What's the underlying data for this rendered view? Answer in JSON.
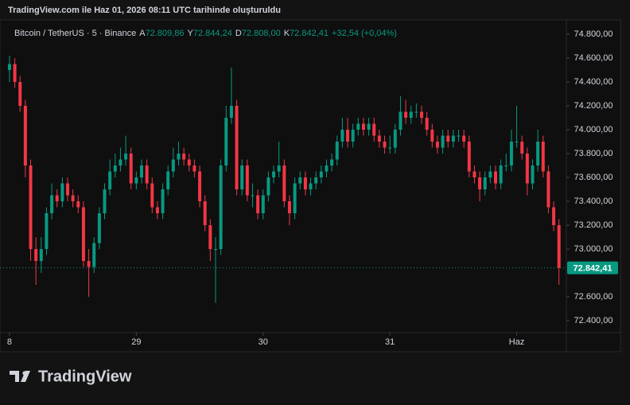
{
  "header": {
    "caption": "TradingView.com ile Haz 01, 2026 08:11 UTC tarihinde oluşturuldu"
  },
  "chart_data": {
    "type": "candlestick",
    "title": "Bitcoin / TetherUS · 5 · Binance",
    "ohlc_legend": [
      {
        "key": "A",
        "value": "72.809,86"
      },
      {
        "key": "Y",
        "value": "72.844,24"
      },
      {
        "key": "D",
        "value": "72.808,00"
      },
      {
        "key": "K",
        "value": "72.842,41"
      }
    ],
    "change": "+32,54 (+0,04%)",
    "up_color": "#089981",
    "down_color": "#f23645",
    "x": [
      0,
      1,
      2,
      3,
      4,
      5,
      6,
      7,
      8,
      9,
      10,
      11,
      12,
      13,
      14,
      15,
      16,
      17,
      18,
      19,
      20,
      21,
      22,
      23,
      24,
      25,
      26,
      27,
      28,
      29,
      30,
      31,
      32,
      33,
      34,
      35,
      36,
      37,
      38,
      39,
      40,
      41,
      42,
      43,
      44,
      45,
      46,
      47,
      48,
      49,
      50,
      51,
      52,
      53,
      54,
      55,
      56,
      57,
      58,
      59,
      60,
      61,
      62,
      63,
      64,
      65,
      66,
      67,
      68,
      69,
      70,
      71,
      72,
      73,
      74,
      75,
      76,
      77,
      78,
      79,
      80,
      81,
      82,
      83,
      84,
      85,
      86,
      87,
      88,
      89,
      90,
      91,
      92,
      93,
      94,
      95,
      96,
      97,
      98,
      99,
      100,
      101,
      102,
      103,
      104
    ],
    "open": [
      74500,
      74550,
      74400,
      74200,
      73700,
      73000,
      72900,
      73000,
      73300,
      73450,
      73400,
      73550,
      73450,
      73400,
      73350,
      72900,
      72850,
      73050,
      73300,
      73500,
      73650,
      73700,
      73750,
      73800,
      73550,
      73600,
      73700,
      73550,
      73350,
      73300,
      73500,
      73650,
      73750,
      73800,
      73750,
      73700,
      73650,
      73400,
      73200,
      73000,
      73000,
      73700,
      74100,
      74200,
      73500,
      73700,
      73450,
      73450,
      73300,
      73450,
      73600,
      73650,
      73700,
      73400,
      73300,
      73550,
      73600,
      73500,
      73550,
      73600,
      73650,
      73700,
      73750,
      73900,
      74000,
      73900,
      74000,
      74050,
      74000,
      74050,
      73950,
      73900,
      73850,
      73850,
      74000,
      74150,
      74100,
      74150,
      74150,
      74100,
      74000,
      73900,
      73850,
      73950,
      73900,
      73950,
      73950,
      73900,
      73650,
      73600,
      73500,
      73600,
      73650,
      73550,
      73700,
      73700,
      73900,
      73900,
      73800,
      73550,
      73700,
      73900,
      73650,
      73350,
      73200
    ],
    "high": [
      74620,
      74600,
      74450,
      74250,
      73750,
      73100,
      73100,
      73350,
      73550,
      73500,
      73600,
      73600,
      73500,
      73450,
      73400,
      73000,
      73100,
      73350,
      73550,
      73750,
      73800,
      73850,
      73950,
      73850,
      73650,
      73750,
      73750,
      73600,
      73400,
      73550,
      73700,
      73850,
      73900,
      73850,
      73800,
      73750,
      73700,
      73450,
      73250,
      73100,
      73750,
      74200,
      74520,
      74250,
      73750,
      73750,
      73550,
      73500,
      73500,
      73650,
      73700,
      73900,
      73750,
      73450,
      73600,
      73650,
      73650,
      73600,
      73650,
      73700,
      73750,
      73800,
      73950,
      74100,
      74100,
      74050,
      74100,
      74100,
      74100,
      74100,
      74000,
      73950,
      73950,
      74050,
      74280,
      74250,
      74200,
      74220,
      74200,
      74150,
      74050,
      73950,
      74000,
      74000,
      74000,
      74000,
      74000,
      73950,
      73700,
      73650,
      73650,
      73700,
      73700,
      73750,
      73800,
      74000,
      74200,
      73950,
      73850,
      73750,
      74000,
      73950,
      73700,
      73400,
      73250
    ],
    "low": [
      74400,
      74350,
      74150,
      73600,
      72900,
      72700,
      72800,
      72950,
      73250,
      73350,
      73350,
      73400,
      73350,
      73300,
      72850,
      72600,
      72800,
      73000,
      73250,
      73450,
      73600,
      73650,
      73700,
      73500,
      73500,
      73550,
      73500,
      73300,
      73250,
      73250,
      73450,
      73600,
      73700,
      73700,
      73650,
      73600,
      73350,
      73150,
      72900,
      72550,
      72950,
      73650,
      74050,
      73450,
      73450,
      73400,
      73350,
      73250,
      73250,
      73400,
      73550,
      73600,
      73350,
      73200,
      73250,
      73500,
      73450,
      73450,
      73500,
      73550,
      73600,
      73650,
      73700,
      73850,
      73850,
      73850,
      73950,
      73950,
      73950,
      73900,
      73850,
      73800,
      73800,
      73800,
      73950,
      74050,
      74050,
      74100,
      74050,
      73950,
      73850,
      73800,
      73800,
      73850,
      73850,
      73900,
      73850,
      73600,
      73550,
      73400,
      73450,
      73550,
      73500,
      73500,
      73650,
      73650,
      73850,
      73750,
      73450,
      73500,
      73650,
      73600,
      73300,
      73150,
      72700
    ],
    "close": [
      74550,
      74400,
      74200,
      73700,
      73000,
      72900,
      73000,
      73300,
      73450,
      73400,
      73550,
      73450,
      73400,
      73350,
      72900,
      72850,
      73050,
      73300,
      73500,
      73650,
      73700,
      73750,
      73800,
      73550,
      73600,
      73700,
      73550,
      73350,
      73300,
      73500,
      73650,
      73750,
      73800,
      73750,
      73700,
      73650,
      73400,
      73200,
      73000,
      73000,
      73700,
      74100,
      74200,
      73500,
      73700,
      73450,
      73450,
      73300,
      73450,
      73600,
      73650,
      73700,
      73400,
      73300,
      73550,
      73600,
      73500,
      73550,
      73600,
      73650,
      73700,
      73750,
      73900,
      74000,
      73900,
      74000,
      74050,
      74000,
      74050,
      73950,
      73900,
      73850,
      73850,
      74000,
      74150,
      74100,
      74150,
      74150,
      74100,
      74000,
      73900,
      73850,
      73950,
      73900,
      73950,
      73950,
      73900,
      73650,
      73600,
      73500,
      73600,
      73650,
      73550,
      73700,
      73700,
      73900,
      73900,
      73800,
      73550,
      73700,
      73900,
      73650,
      73350,
      73200,
      72842.41
    ],
    "last_price": {
      "value": 72842.41,
      "label": "72.842,41"
    },
    "xlim": [
      -1.8,
      105.4
    ],
    "xticks": [
      {
        "value": 0,
        "label": "8"
      },
      {
        "value": 24,
        "label": "29"
      },
      {
        "value": 48,
        "label": "30"
      },
      {
        "value": 72,
        "label": "31"
      },
      {
        "value": 96,
        "label": "Haz"
      }
    ],
    "ylim": [
      72300,
      74920
    ],
    "yticks": [
      {
        "value": 72400,
        "label": "72.400,00"
      },
      {
        "value": 72600,
        "label": "72.600,00"
      },
      {
        "value": 73000,
        "label": "73.000,00"
      },
      {
        "value": 73200,
        "label": "73.200,00"
      },
      {
        "value": 73400,
        "label": "73.400,00"
      },
      {
        "value": 73600,
        "label": "73.600,00"
      },
      {
        "value": 73800,
        "label": "73.800,00"
      },
      {
        "value": 74000,
        "label": "74.000,00"
      },
      {
        "value": 74200,
        "label": "74.200,00"
      },
      {
        "value": 74400,
        "label": "74.400,00"
      },
      {
        "value": 74600,
        "label": "74.600,00"
      },
      {
        "value": 74800,
        "label": "74.800,00"
      }
    ]
  },
  "footer": {
    "brand": "TradingView"
  }
}
